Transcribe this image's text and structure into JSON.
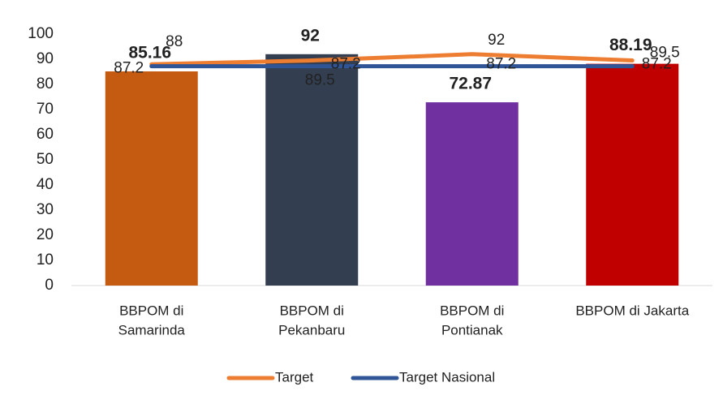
{
  "chart_data": {
    "type": "bar",
    "categories": [
      [
        "BBPOM di",
        "Samarinda"
      ],
      [
        "BBPOM di",
        "Pekanbaru"
      ],
      [
        "BBPOM di",
        "Pontianak"
      ],
      [
        "BBPOM di Jakarta"
      ]
    ],
    "values": [
      85.16,
      92,
      72.87,
      88.19
    ],
    "colors": [
      "#c55a11",
      "#333f50",
      "#7030a0",
      "#c00000"
    ],
    "series": [
      {
        "name": "Target",
        "type": "line",
        "color": "#ed7d31",
        "values": [
          88,
          89.5,
          92,
          89.5
        ]
      },
      {
        "name": "Target Nasional",
        "type": "line",
        "color": "#2f5597",
        "values": [
          87.2,
          87.2,
          87.2,
          87.2
        ]
      }
    ],
    "ylim": [
      0,
      100
    ],
    "yticks": [
      0,
      10,
      20,
      30,
      40,
      50,
      60,
      70,
      80,
      90,
      100
    ]
  }
}
